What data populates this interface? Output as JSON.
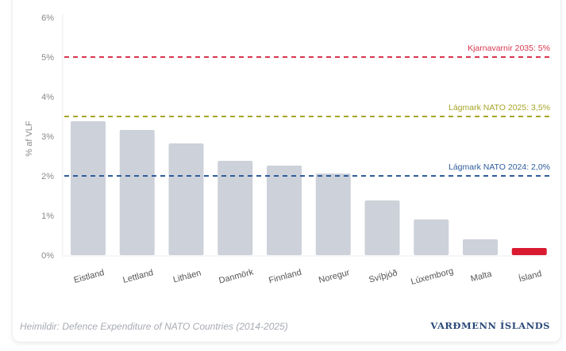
{
  "chart_data": {
    "type": "bar",
    "title": "",
    "xlabel": "",
    "ylabel": "% af VLF",
    "ylim": [
      0,
      6
    ],
    "yticks": [
      0,
      1,
      2,
      3,
      4,
      5,
      6
    ],
    "ytick_labels": [
      "0%",
      "1%",
      "2%",
      "3%",
      "4%",
      "5%",
      "6%"
    ],
    "grid": false,
    "categories": [
      "Eistland",
      "Lettland",
      "Lithäen",
      "Danmörk",
      "Finnland",
      "Noregur",
      "Svíþjóð",
      "Lúxemborg",
      "Malta",
      "Ísland"
    ],
    "values": [
      3.38,
      3.16,
      2.82,
      2.38,
      2.26,
      2.06,
      1.38,
      0.9,
      0.4,
      0.18
    ],
    "bar_colors": [
      "#cdd1d9",
      "#cdd1d9",
      "#cdd1d9",
      "#cdd1d9",
      "#cdd1d9",
      "#cdd1d9",
      "#cdd1d9",
      "#cdd1d9",
      "#cdd1d9",
      "#d91a30"
    ],
    "highlight": "Ísland",
    "reference_lines": [
      {
        "label": "Kjarnavarnir 2035: 5%",
        "value": 5.0,
        "color": "#d9364f"
      },
      {
        "label": "Lágmark NATO 2025: 3,5%",
        "value": 3.5,
        "color": "#a7a528"
      },
      {
        "label": "Lágmark NATO 2024: 2,0%",
        "value": 2.0,
        "color": "#2f5c9c"
      }
    ]
  },
  "footer": {
    "source": "Heimildir: Defence Expenditure of NATO Countries (2014-2025)",
    "brand": "VARÐMENN ÍSLANDS"
  }
}
